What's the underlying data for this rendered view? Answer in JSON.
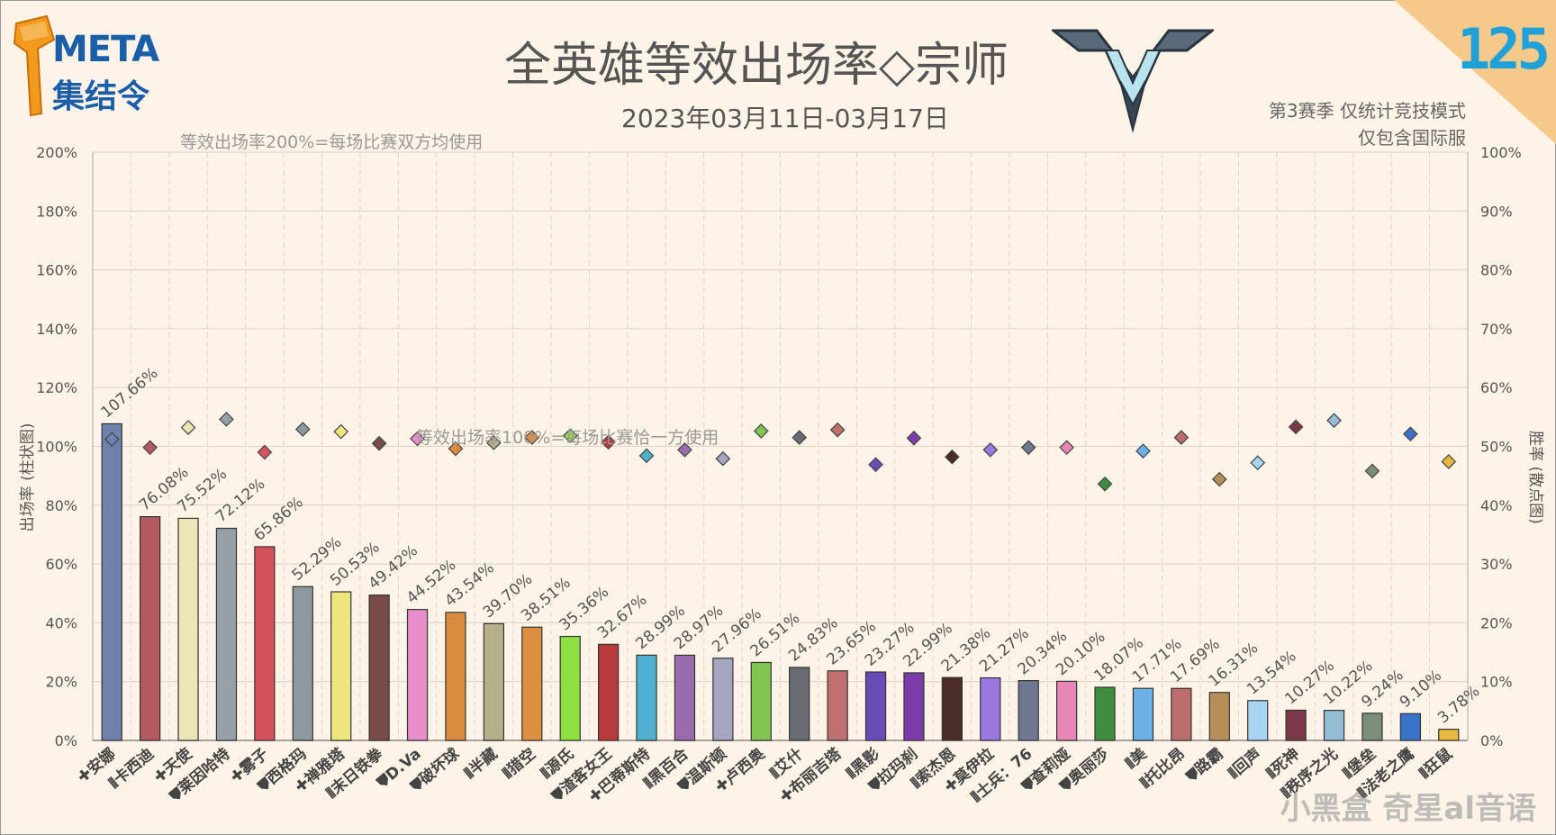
{
  "header": {
    "logo_line1": "META",
    "logo_line2": "集结令",
    "title": "全英雄等效出场率◇宗师",
    "date_range": "2023年03月11日-03月17日",
    "season_line1": "第3赛季 仅统计竞技模式",
    "season_line2": "仅包含国际服",
    "issue_number": "125",
    "watermark": "小黑盒 奇星al音语"
  },
  "chart_data": {
    "type": "bar",
    "note_top": "等效出场率200%=每场比赛双方均使用",
    "note_mid": "等效出场率100%=每场比赛恰一方使用",
    "ylabel_left": "出场率 (柱状图)",
    "ylabel_right": "胜率 (散点图)",
    "ylim_left": [
      0,
      200
    ],
    "ylim_right": [
      0,
      100
    ],
    "left_ticks": [
      "0%",
      "20%",
      "40%",
      "60%",
      "80%",
      "100%",
      "120%",
      "140%",
      "160%",
      "180%",
      "200%"
    ],
    "right_ticks": [
      "0%",
      "10%",
      "20%",
      "30%",
      "40%",
      "50%",
      "60%",
      "70%",
      "80%",
      "90%",
      "100%"
    ],
    "categories": [
      "安娜",
      "卡西迪",
      "天使",
      "莱因哈特",
      "雾子",
      "西格玛",
      "禅雅塔",
      "末日铁拳",
      "D.Va",
      "破坏球",
      "半藏",
      "猎空",
      "源氏",
      "渣客女王",
      "巴蒂斯特",
      "黑百合",
      "温斯顿",
      "卢西奥",
      "艾什",
      "布丽吉塔",
      "黑影",
      "拉玛刹",
      "索杰恩",
      "莫伊拉",
      "士兵：76",
      "查莉娅",
      "奥丽莎",
      "美",
      "托比昂",
      "路霸",
      "回声",
      "死神",
      "秩序之光",
      "堡垒",
      "法老之鹰",
      "狂鼠"
    ],
    "roles": [
      "support",
      "damage",
      "support",
      "tank",
      "support",
      "tank",
      "support",
      "damage",
      "tank",
      "tank",
      "damage",
      "damage",
      "damage",
      "tank",
      "support",
      "damage",
      "tank",
      "support",
      "damage",
      "support",
      "damage",
      "tank",
      "damage",
      "support",
      "damage",
      "tank",
      "tank",
      "damage",
      "damage",
      "tank",
      "damage",
      "damage",
      "damage",
      "damage",
      "damage",
      "damage"
    ],
    "series": [
      {
        "name": "出场率",
        "values": [
          107.66,
          76.08,
          75.52,
          72.12,
          65.86,
          52.29,
          50.53,
          49.42,
          44.52,
          43.54,
          39.7,
          38.51,
          35.36,
          32.67,
          28.99,
          28.97,
          27.96,
          26.51,
          24.83,
          23.65,
          23.27,
          22.99,
          21.38,
          21.27,
          20.34,
          20.1,
          18.07,
          17.71,
          17.69,
          16.31,
          13.54,
          10.27,
          10.22,
          9.24,
          9.1,
          3.78
        ],
        "labels": [
          "107.66%",
          "76.08%",
          "75.52%",
          "72.12%",
          "65.86%",
          "52.29%",
          "50.53%",
          "49.42%",
          "44.52%",
          "43.54%",
          "39.70%",
          "38.51%",
          "35.36%",
          "32.67%",
          "28.99%",
          "28.97%",
          "27.96%",
          "26.51%",
          "24.83%",
          "23.65%",
          "23.27%",
          "22.99%",
          "21.38%",
          "21.27%",
          "20.34%",
          "20.10%",
          "18.07%",
          "17.71%",
          "17.69%",
          "16.31%",
          "13.54%",
          "10.27%",
          "10.22%",
          "9.24%",
          "9.10%",
          "3.78%"
        ]
      },
      {
        "name": "胜率",
        "values": [
          51.2,
          49.8,
          53.2,
          54.6,
          49.0,
          52.9,
          52.5,
          50.5,
          51.3,
          49.6,
          50.6,
          51.5,
          51.8,
          50.7,
          48.4,
          49.4,
          47.9,
          52.6,
          51.5,
          52.8,
          46.9,
          51.4,
          48.2,
          49.4,
          49.8,
          49.8,
          43.6,
          49.2,
          51.5,
          44.4,
          47.2,
          53.3,
          54.4,
          45.8,
          52.1,
          47.4
        ]
      }
    ],
    "colors": [
      "#6e82ad",
      "#b35a5e",
      "#ede5b6",
      "#96a0a8",
      "#d4525e",
      "#8c9aa0",
      "#ece67c",
      "#7a4a48",
      "#ea8ecb",
      "#d98c3e",
      "#b5b08a",
      "#dc8f40",
      "#8ee040",
      "#b83a3a",
      "#4fb1cf",
      "#9b6bb0",
      "#a3a6be",
      "#82c450",
      "#666c70",
      "#c0706e",
      "#6a4cb8",
      "#7a3ca8",
      "#4a2c28",
      "#9a78e0",
      "#6e7890",
      "#e886b8",
      "#3e8e3e",
      "#6cb0e8",
      "#bc6c6c",
      "#b88e58",
      "#a8d4f4",
      "#7a3848",
      "#94bcd4",
      "#7a8e7a",
      "#3a72c8",
      "#e8b840"
    ],
    "grid": true
  }
}
